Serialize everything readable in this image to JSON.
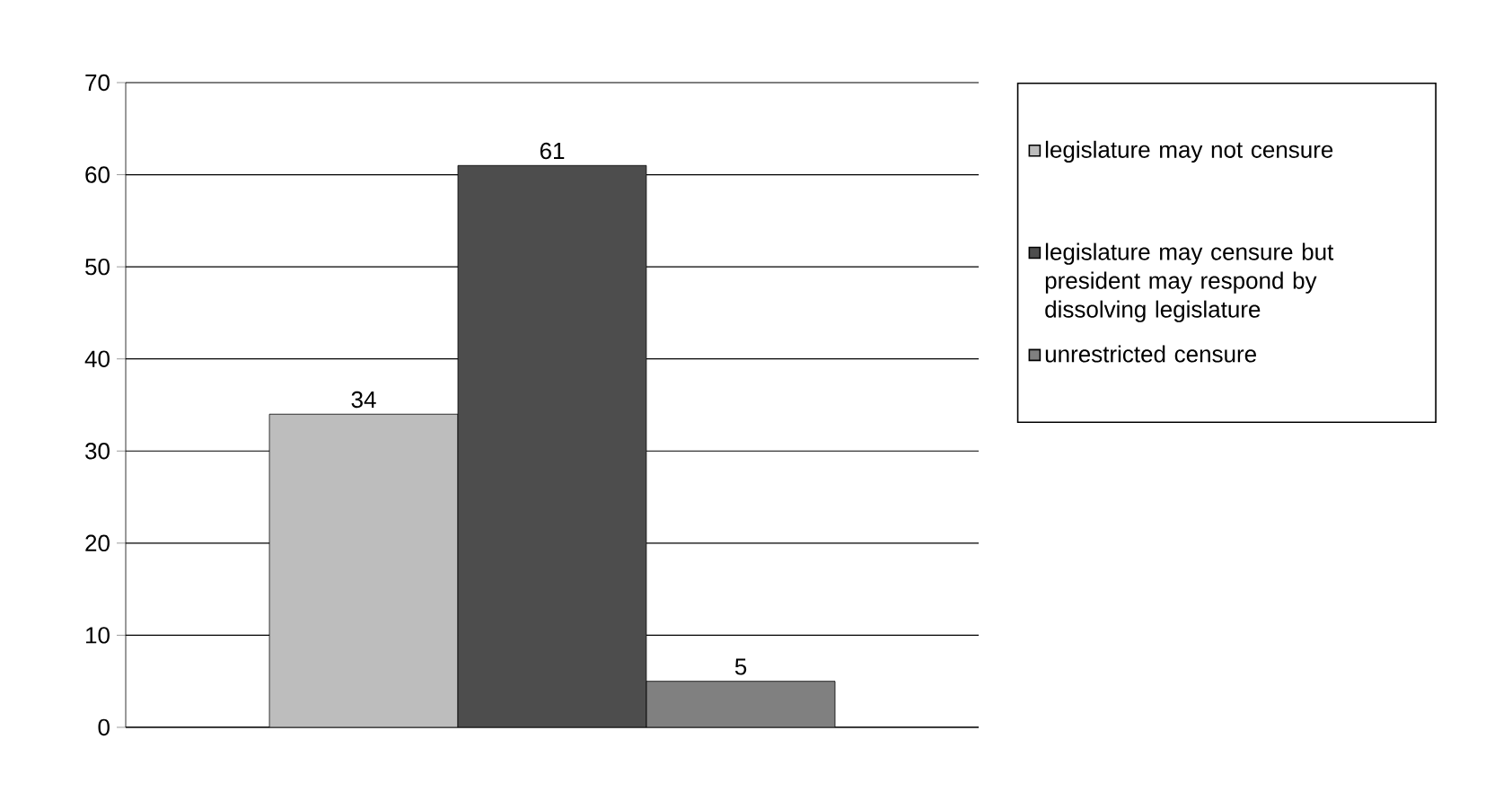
{
  "chart_data": {
    "type": "bar",
    "categories": [
      null
    ],
    "series": [
      {
        "name": "legislature may not censure",
        "color": "#bdbdbd",
        "values": [
          34
        ]
      },
      {
        "name": "legislature may censure but president may respond by dissolving legislature",
        "color": "#4d4d4d",
        "values": [
          61
        ]
      },
      {
        "name": "unrestricted censure",
        "color": "#808080",
        "values": [
          5
        ]
      }
    ],
    "ylim": [
      0,
      70
    ],
    "yticks": [
      0,
      10,
      20,
      30,
      40,
      50,
      60,
      70
    ],
    "grid": "y",
    "legend": "right",
    "data_labels": true
  }
}
